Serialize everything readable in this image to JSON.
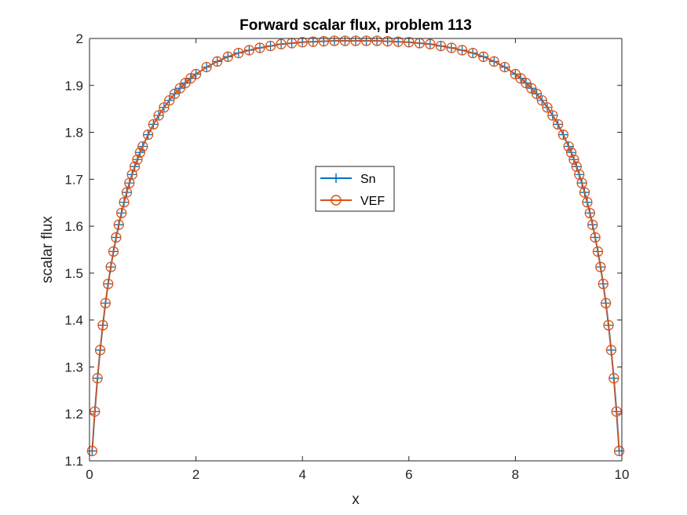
{
  "chart_data": {
    "type": "line",
    "title": "Forward scalar flux, problem 113",
    "xlabel": "x",
    "ylabel": "scalar flux",
    "xlim": [
      0,
      10
    ],
    "ylim": [
      1.1,
      2
    ],
    "xticks": [
      0,
      2,
      4,
      6,
      8,
      10
    ],
    "xtick_labels": [
      "0",
      "2",
      "4",
      "6",
      "8",
      "10"
    ],
    "yticks": [
      1.1,
      1.2,
      1.3,
      1.4,
      1.5,
      1.6,
      1.7,
      1.8,
      1.9,
      2
    ],
    "ytick_labels": [
      "1.1",
      "1.2",
      "1.3",
      "1.4",
      "1.5",
      "1.6",
      "1.7",
      "1.8",
      "1.9",
      "2"
    ],
    "grid": false,
    "legend_position": "center",
    "x": [
      0.05,
      0.1,
      0.15,
      0.2,
      0.25,
      0.3,
      0.35,
      0.4,
      0.45,
      0.5,
      0.55,
      0.6,
      0.65,
      0.7,
      0.75,
      0.8,
      0.85,
      0.9,
      0.95,
      1.0,
      1.1,
      1.2,
      1.3,
      1.4,
      1.5,
      1.6,
      1.7,
      1.8,
      1.9,
      2.0,
      2.2,
      2.4,
      2.6,
      2.8,
      3.0,
      3.2,
      3.4,
      3.6,
      3.8,
      4.0,
      4.2,
      4.4,
      4.6,
      4.8,
      5.0,
      5.2,
      5.4,
      5.6,
      5.8,
      6.0,
      6.2,
      6.4,
      6.6,
      6.8,
      7.0,
      7.2,
      7.4,
      7.6,
      7.8,
      8.0,
      8.1,
      8.2,
      8.3,
      8.4,
      8.5,
      8.6,
      8.7,
      8.8,
      8.9,
      9.0,
      9.05,
      9.1,
      9.15,
      9.2,
      9.25,
      9.3,
      9.35,
      9.4,
      9.45,
      9.5,
      9.55,
      9.6,
      9.65,
      9.7,
      9.75,
      9.8,
      9.85,
      9.9,
      9.95
    ],
    "series": [
      {
        "name": "Sn",
        "color": "#0072BD",
        "marker": "plus",
        "values": [
          1.121,
          1.205,
          1.276,
          1.336,
          1.389,
          1.436,
          1.477,
          1.513,
          1.546,
          1.576,
          1.603,
          1.628,
          1.651,
          1.672,
          1.692,
          1.71,
          1.727,
          1.742,
          1.757,
          1.77,
          1.795,
          1.817,
          1.836,
          1.853,
          1.868,
          1.882,
          1.894,
          1.905,
          1.915,
          1.924,
          1.939,
          1.951,
          1.961,
          1.969,
          1.975,
          1.98,
          1.984,
          1.988,
          1.99,
          1.992,
          1.993,
          1.994,
          1.995,
          1.995,
          1.995,
          1.995,
          1.995,
          1.994,
          1.993,
          1.992,
          1.99,
          1.988,
          1.984,
          1.98,
          1.975,
          1.969,
          1.961,
          1.951,
          1.939,
          1.924,
          1.915,
          1.905,
          1.894,
          1.882,
          1.868,
          1.853,
          1.836,
          1.817,
          1.795,
          1.77,
          1.757,
          1.742,
          1.727,
          1.71,
          1.692,
          1.672,
          1.651,
          1.628,
          1.603,
          1.576,
          1.546,
          1.513,
          1.477,
          1.436,
          1.389,
          1.336,
          1.276,
          1.205,
          1.121
        ]
      },
      {
        "name": "VEF",
        "color": "#D95319",
        "marker": "circle",
        "values": [
          1.121,
          1.205,
          1.276,
          1.336,
          1.389,
          1.436,
          1.477,
          1.513,
          1.546,
          1.576,
          1.603,
          1.628,
          1.651,
          1.672,
          1.692,
          1.71,
          1.727,
          1.742,
          1.757,
          1.77,
          1.795,
          1.817,
          1.836,
          1.853,
          1.868,
          1.882,
          1.894,
          1.905,
          1.915,
          1.924,
          1.939,
          1.951,
          1.961,
          1.969,
          1.975,
          1.98,
          1.984,
          1.988,
          1.99,
          1.992,
          1.993,
          1.994,
          1.995,
          1.995,
          1.995,
          1.995,
          1.995,
          1.994,
          1.993,
          1.992,
          1.99,
          1.988,
          1.984,
          1.98,
          1.975,
          1.969,
          1.961,
          1.951,
          1.939,
          1.924,
          1.915,
          1.905,
          1.894,
          1.882,
          1.868,
          1.853,
          1.836,
          1.817,
          1.795,
          1.77,
          1.757,
          1.742,
          1.727,
          1.71,
          1.692,
          1.672,
          1.651,
          1.628,
          1.603,
          1.576,
          1.546,
          1.513,
          1.477,
          1.436,
          1.389,
          1.336,
          1.276,
          1.205,
          1.121
        ]
      }
    ]
  }
}
